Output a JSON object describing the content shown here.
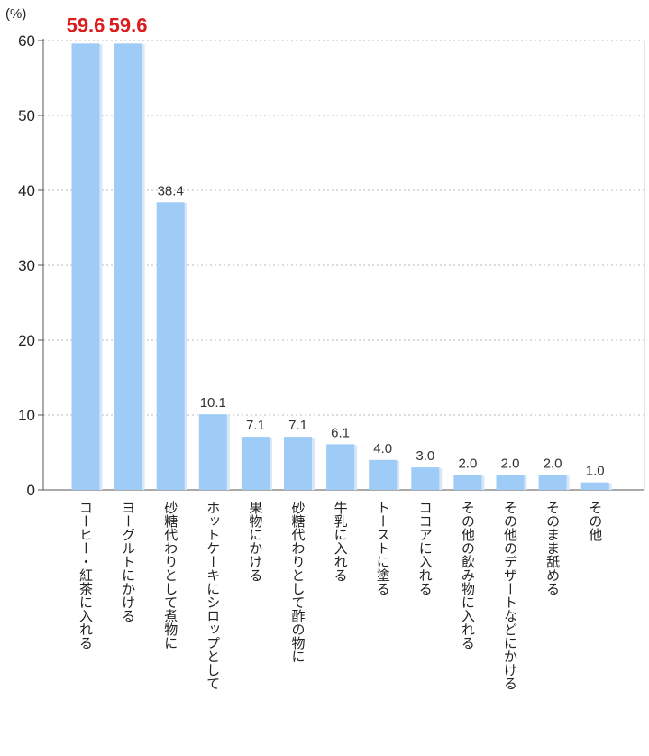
{
  "chart_data": {
    "type": "bar",
    "unit_label": "(%)",
    "ylim": [
      0,
      60
    ],
    "yticks": [
      0,
      10,
      20,
      30,
      40,
      50,
      60
    ],
    "grid": true,
    "bar_color": "#9fcbf7",
    "highlight_color": "#d81e1e",
    "categories": [
      "コーヒー・紅茶に入れる",
      "ヨーグルトにかける",
      "砂糖代わりとして煮物に",
      "ホットケーキにシロップとして",
      "果物にかける",
      "砂糖代わりとして酢の物に",
      "牛乳に入れる",
      "トーストに塗る",
      "ココアに入れる",
      "その他の飲み物に入れる",
      "その他のデザートなどにかける",
      "そのまま舐める",
      "その他"
    ],
    "values": [
      59.6,
      59.6,
      38.4,
      10.1,
      7.1,
      7.1,
      6.1,
      4.0,
      3.0,
      2.0,
      2.0,
      2.0,
      1.0
    ],
    "value_labels": [
      "59.6",
      "59.6",
      "38.4",
      "10.1",
      "7.1",
      "7.1",
      "6.1",
      "4.0",
      "3.0",
      "2.0",
      "2.0",
      "2.0",
      "1.0"
    ],
    "highlighted": [
      0,
      1
    ]
  }
}
